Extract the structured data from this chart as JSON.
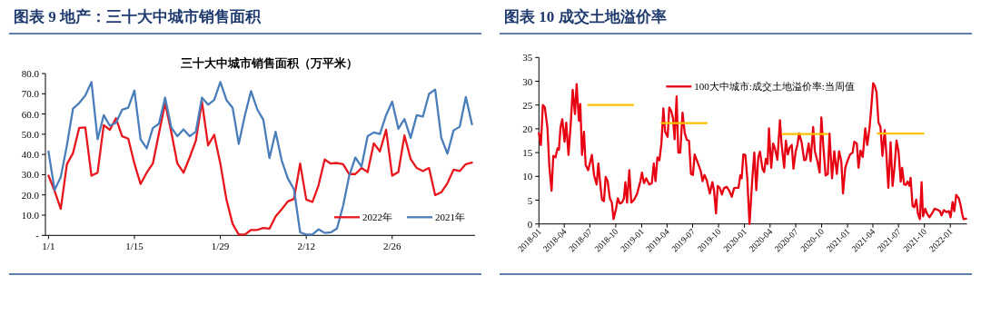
{
  "chart_data": [
    {
      "type": "line",
      "title": "图表 9 地产：三十大中城市销售面积",
      "subtitle": "三十大中城市销售面积（万平米）",
      "categories": [
        "1/1",
        null,
        null,
        null,
        null,
        null,
        null,
        null,
        null,
        null,
        null,
        null,
        null,
        null,
        "1/15",
        null,
        null,
        null,
        null,
        null,
        null,
        null,
        null,
        null,
        null,
        null,
        null,
        null,
        "1/29",
        null,
        null,
        null,
        null,
        null,
        null,
        null,
        null,
        null,
        null,
        null,
        null,
        null,
        "2/12",
        null,
        null,
        null,
        null,
        null,
        null,
        null,
        null,
        null,
        null,
        null,
        null,
        null,
        "2/26",
        null,
        null,
        null,
        null,
        null,
        null,
        null,
        null,
        null,
        null,
        null,
        null,
        null
      ],
      "ylim": [
        0,
        80
      ],
      "yticks": [
        {
          "value": 0,
          "label": "-"
        },
        {
          "value": 10,
          "label": "10.0"
        },
        {
          "value": 20,
          "label": "20.0"
        },
        {
          "value": 30,
          "label": "30.0"
        },
        {
          "value": 40,
          "label": "40.0"
        },
        {
          "value": 50,
          "label": "50.0"
        },
        {
          "value": 60,
          "label": "60.0"
        },
        {
          "value": 70,
          "label": "70.0"
        },
        {
          "value": 80,
          "label": "80.0"
        }
      ],
      "legend": "bottom right",
      "series": [
        {
          "name": "2022年",
          "color": "#e8161d",
          "values": [
            29.5,
            22,
            13.1,
            35.2,
            40.7,
            53.1,
            53.4,
            29.5,
            31,
            54.5,
            52.2,
            57.9,
            49,
            47.8,
            35.5,
            25.4,
            31,
            35.5,
            50.4,
            65.4,
            51.2,
            35.5,
            31,
            38.5,
            46.7,
            66.1,
            44.5,
            49.7,
            35.5,
            17.6,
            5.7,
            0.4,
            0.4,
            2.7,
            2.7,
            3.7,
            3.3,
            9.3,
            12.9,
            16.8,
            18,
            35.5,
            17.7,
            16.5,
            24.8,
            37.5,
            35.5,
            35.8,
            35.2,
            30.3,
            30.3,
            33.3,
            31.3,
            45.5,
            41.5,
            52.2,
            29.5,
            31.3,
            49.4,
            37.8,
            33.3,
            31.8,
            33.3,
            19.9,
            21.3,
            25.8,
            32.5,
            31.8,
            35.2,
            36
          ]
        },
        {
          "name": "2021年",
          "color": "#4a7ebb",
          "values": [
            41.5,
            22.4,
            28.8,
            44.5,
            62.7,
            65.4,
            69.1,
            75.8,
            47.5,
            59.4,
            54.2,
            55.7,
            62.1,
            63.1,
            71.6,
            47.5,
            43,
            53,
            55.2,
            68.1,
            53.4,
            49,
            52.4,
            49,
            51.2,
            68.1,
            64.6,
            66.9,
            75.8,
            66.9,
            63.1,
            45.2,
            59.4,
            71.3,
            62.4,
            57.2,
            38.2,
            51.2,
            37,
            28.1,
            22.8,
            1.5,
            0.4,
            0.4,
            3,
            1.2,
            1.5,
            3.4,
            14.6,
            29.5,
            38.5,
            34,
            49,
            50.9,
            50.1,
            59.4,
            66.1,
            52.7,
            57.5,
            48.2,
            59.4,
            58.7,
            69.9,
            72.1,
            48.2,
            40.4,
            51.9,
            53.7,
            68.4,
            54.9
          ]
        }
      ]
    },
    {
      "type": "line",
      "title": "图表 10 成交土地溢价率",
      "xlim": [
        "2018-01-01",
        "2022-03-01"
      ],
      "xticks": [
        "2018-01",
        "2018-04",
        "2018-07",
        "2018-10",
        "2019-01",
        "2019-04",
        "2019-07",
        "2019-10",
        "2020-01",
        "2020-04",
        "2020-07",
        "2020-10",
        "2021-01",
        "2021-04",
        "2021-07",
        "2021-10",
        "2022-01"
      ],
      "ylim": [
        0,
        35
      ],
      "yticks": [
        0,
        5,
        10,
        15,
        20,
        25,
        30,
        35
      ],
      "legend": "top",
      "series": [
        {
          "name": "100大中城市:成交土地溢价率:当周值",
          "color": "#e60012",
          "x": [
            "2018-01-01",
            "2018-01-08",
            "2018-01-15",
            "2018-01-22",
            "2018-01-31",
            "2018-02-07",
            "2018-02-15",
            "2018-02-21",
            "2018-03-01",
            "2018-03-08",
            "2018-03-13",
            "2018-03-19",
            "2018-03-25",
            "2018-04-02",
            "2018-04-08",
            "2018-04-16",
            "2018-04-24",
            "2018-05-01",
            "2018-05-09",
            "2018-05-15",
            "2018-05-23",
            "2018-05-28",
            "2018-06-03",
            "2018-06-10",
            "2018-06-16",
            "2018-06-25",
            "2018-07-08",
            "2018-07-16",
            "2018-07-25",
            "2018-07-31",
            "2018-08-07",
            "2018-08-13",
            "2018-08-20",
            "2018-08-26",
            "2018-09-02",
            "2018-09-10",
            "2018-09-17",
            "2018-09-23",
            "2018-10-02",
            "2018-10-08",
            "2018-10-15",
            "2018-10-23",
            "2018-10-30",
            "2018-11-04",
            "2018-11-10",
            "2018-11-18",
            "2018-11-25",
            "2018-12-05",
            "2018-12-16",
            "2018-12-27",
            "2019-01-02",
            "2019-01-09",
            "2019-01-17",
            "2019-01-28",
            "2019-02-06",
            "2019-02-13",
            "2019-02-19",
            "2019-02-26",
            "2019-03-05",
            "2019-03-12",
            "2019-03-19",
            "2019-03-25",
            "2019-04-03",
            "2019-04-09",
            "2019-04-16",
            "2019-04-22",
            "2019-04-28",
            "2019-05-05",
            "2019-05-11",
            "2019-05-18",
            "2019-05-26",
            "2019-06-03",
            "2019-06-10",
            "2019-06-18",
            "2019-06-25",
            "2019-07-02",
            "2019-07-08",
            "2019-07-19",
            "2019-07-30",
            "2019-08-05",
            "2019-08-12",
            "2019-08-20",
            "2019-08-31",
            "2019-09-09",
            "2019-09-15",
            "2019-09-22",
            "2019-09-28",
            "2019-10-05",
            "2019-10-13",
            "2019-10-20",
            "2019-10-30",
            "2019-11-08",
            "2019-11-17",
            "2019-11-25",
            "2019-12-01",
            "2019-12-11",
            "2019-12-17",
            "2019-12-22",
            "2019-12-28",
            "2020-01-04",
            "2020-01-11",
            "2020-01-19",
            "2020-01-29",
            "2020-02-05",
            "2020-02-12",
            "2020-02-19",
            "2020-02-25",
            "2020-03-05",
            "2020-03-11",
            "2020-03-17",
            "2020-03-23",
            "2020-03-28",
            "2020-04-05",
            "2020-04-12",
            "2020-04-18",
            "2020-04-27",
            "2020-05-06",
            "2020-05-12",
            "2020-05-21",
            "2020-05-27",
            "2020-06-03",
            "2020-06-09",
            "2020-06-17",
            "2020-06-23",
            "2020-07-01",
            "2020-07-07",
            "2020-07-13",
            "2020-07-22",
            "2020-07-31",
            "2020-08-06",
            "2020-08-16",
            "2020-08-23",
            "2020-09-01",
            "2020-09-07",
            "2020-09-16",
            "2020-09-24",
            "2020-09-30",
            "2020-10-07",
            "2020-10-15",
            "2020-10-23",
            "2020-10-29",
            "2020-11-07",
            "2020-11-15",
            "2020-11-24",
            "2020-12-02",
            "2020-12-10",
            "2020-12-16",
            "2020-12-24",
            "2021-01-02",
            "2021-01-10",
            "2021-01-19",
            "2021-01-25",
            "2021-02-03",
            "2021-02-09",
            "2021-02-16",
            "2021-02-24",
            "2021-03-05",
            "2021-03-12",
            "2021-03-20",
            "2021-03-26",
            "2021-04-02",
            "2021-04-08",
            "2021-04-14",
            "2021-04-21",
            "2021-04-28",
            "2021-05-05",
            "2021-05-13",
            "2021-05-19",
            "2021-05-26",
            "2021-06-03",
            "2021-06-10",
            "2021-06-17",
            "2021-06-24",
            "2021-07-01",
            "2021-07-09",
            "2021-07-14",
            "2021-07-21",
            "2021-07-27",
            "2021-08-02",
            "2021-08-09",
            "2021-08-13",
            "2021-08-20",
            "2021-08-26",
            "2021-09-02",
            "2021-09-08",
            "2021-09-15",
            "2021-09-21",
            "2021-09-26",
            "2021-10-04",
            "2021-10-10",
            "2021-10-19",
            "2021-10-28",
            "2021-11-06",
            "2021-11-16",
            "2021-11-25",
            "2021-12-01",
            "2021-12-09",
            "2021-12-18",
            "2021-12-27",
            "2022-01-02",
            "2022-01-09",
            "2022-01-15",
            "2022-01-22",
            "2022-01-31",
            "2022-02-06",
            "2022-02-12",
            "2022-02-17",
            "2022-02-26"
          ],
          "values": [
            19.1,
            16.6,
            25,
            24.5,
            20.4,
            12.1,
            7,
            14.3,
            14,
            15.9,
            15.6,
            20.4,
            22,
            17.3,
            21.3,
            14.5,
            21,
            28.2,
            23.1,
            29.4,
            21.7,
            25.2,
            14.5,
            19.4,
            12.4,
            11.3,
            14.5,
            10.2,
            8.3,
            12.7,
            8.3,
            5.1,
            4.8,
            9.9,
            9,
            5.4,
            4.5,
            1,
            3.2,
            5.4,
            4.3,
            4.5,
            5.4,
            8.8,
            4.5,
            11.3,
            4.5,
            5.1,
            6.4,
            8.9,
            10.8,
            8.6,
            9.6,
            8.3,
            8.6,
            12.7,
            9,
            14,
            13.4,
            16.9,
            24.3,
            19.4,
            18.3,
            24.5,
            23.7,
            22.3,
            17.8,
            26.8,
            15,
            15,
            23.4,
            19.1,
            17.7,
            17.5,
            10.5,
            10.3,
            14.6,
            12.9,
            11.1,
            9,
            10.3,
            9.2,
            6.4,
            8.8,
            7,
            2.2,
            8,
            7.6,
            6.2,
            7.5,
            7.8,
            7,
            5.7,
            7.5,
            7.6,
            7.6,
            10.2,
            9.6,
            14.6,
            14.5,
            9.6,
            0,
            9.6,
            15,
            7.1,
            14,
            15.2,
            11.6,
            10.9,
            13.7,
            12.6,
            20.1,
            11.8,
            16.9,
            15.9,
            13.5,
            21.8,
            16.6,
            11.8,
            17.5,
            14.6,
            16,
            16.6,
            11.6,
            15.3,
            16.6,
            19,
            17.2,
            13.4,
            13.5,
            16.9,
            13.2,
            20.4,
            15.3,
            13.2,
            10.8,
            22.4,
            16.4,
            10.2,
            10.5,
            19,
            9.6,
            15.3,
            10.5,
            15.3,
            13.1,
            6.4,
            11.8,
            13.4,
            14.6,
            15,
            17.3,
            16.9,
            11.8,
            15.4,
            14.1,
            20.1,
            16.6,
            20.1,
            24.2,
            29.6,
            29,
            27.7,
            21.3,
            20.4,
            14.3,
            19.7,
            14.6,
            7.6,
            17.2,
            8,
            12.1,
            17.5,
            15.3,
            8.9,
            11.8,
            8.3,
            8.2,
            8.9,
            8,
            9.7,
            3.8,
            3.5,
            5.1,
            2.2,
            1,
            8.8,
            1.6,
            3.2,
            2.2,
            1.4,
            2.2,
            3.2,
            3,
            2.7,
            1.8,
            2.9,
            2.5,
            2.7,
            1.4,
            4.6,
            2.7,
            6.1,
            5.4,
            4.1,
            2.2,
            1,
            1.1
          ]
        },
        {
          "color": "#ffc000",
          "x": [
            "2018-06-25",
            "2018-12-02"
          ],
          "values": [
            25,
            25
          ]
        },
        {
          "color": "#ffc000",
          "x": [
            "2019-03-12",
            "2019-08-20"
          ],
          "values": [
            21.2,
            21.2
          ]
        },
        {
          "color": "#ffc000",
          "x": [
            "2020-05-15",
            "2020-10-21"
          ],
          "values": [
            18.9,
            18.9
          ]
        },
        {
          "color": "#ffc000",
          "x": [
            "2021-04-19",
            "2021-09-27"
          ],
          "values": [
            19,
            19
          ]
        }
      ]
    }
  ]
}
